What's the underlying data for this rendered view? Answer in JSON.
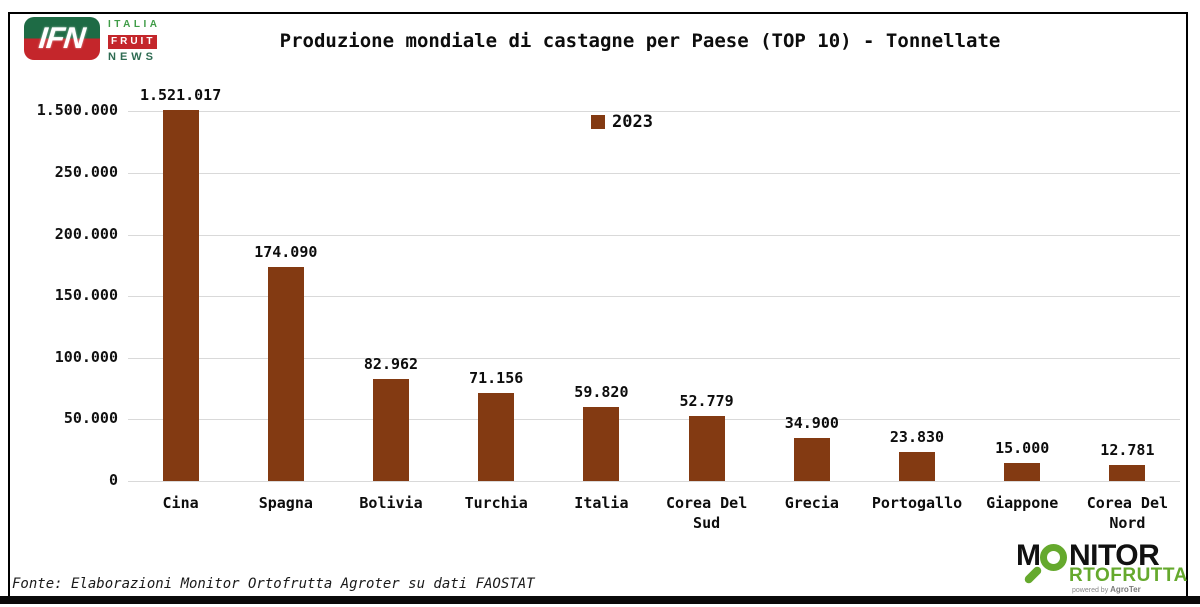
{
  "header": {
    "ifn_logo": {
      "abbr": "IFN",
      "italia": "ITALIA",
      "fruit": "FRUIT",
      "news": "NEWS"
    },
    "title": "Produzione mondiale di castagne per Paese (TOP 10) - Tonnellate"
  },
  "legend": {
    "year": "2023"
  },
  "chart_data": {
    "type": "bar",
    "title": "Produzione mondiale di castagne per Paese (TOP 10) - Tonnellate",
    "unit": "Tonnellate",
    "categories": [
      "Cina",
      "Spagna",
      "Bolivia",
      "Turchia",
      "Italia",
      "Corea Del Sud",
      "Grecia",
      "Portogallo",
      "Giappone",
      "Corea Del Nord"
    ],
    "series": [
      {
        "name": "2023",
        "values": [
          1521017,
          174090,
          82962,
          71156,
          59820,
          52779,
          34900,
          23830,
          15000,
          12781
        ]
      }
    ],
    "value_labels": [
      "1.521.017",
      "174.090",
      "82.962",
      "71.156",
      "59.820",
      "52.779",
      "34.900",
      "23.830",
      "15.000",
      "12.781"
    ],
    "y_ticks": [
      {
        "label": "1.500.000",
        "value": 1500000
      },
      {
        "label": "250.000",
        "value": 250000
      },
      {
        "label": "200.000",
        "value": 200000
      },
      {
        "label": "150.000",
        "value": 150000
      },
      {
        "label": "100.000",
        "value": 100000
      },
      {
        "label": "50.000",
        "value": 50000
      },
      {
        "label": "0",
        "value": 0
      }
    ],
    "axis_break": {
      "linear_max": 250000,
      "break_top": 1500000
    },
    "bar_color": "#833A12",
    "gridline_color": "#D9D9D9",
    "grid": true,
    "legend_position": "top-center"
  },
  "footer": {
    "source": "Fonte: Elaborazioni Monitor Ortofrutta Agroter su dati FAOSTAT",
    "monitor_logo": {
      "m": "M",
      "nitor": "NITOR",
      "line2": "RTOFRUTTA",
      "powered_by": "powered by",
      "brand": "AgroTer",
      "green": "#65A92D"
    }
  },
  "colors": {
    "ifn_green": "#1E6B45",
    "ifn_red": "#C4262B",
    "bar_brown": "#833A12"
  }
}
